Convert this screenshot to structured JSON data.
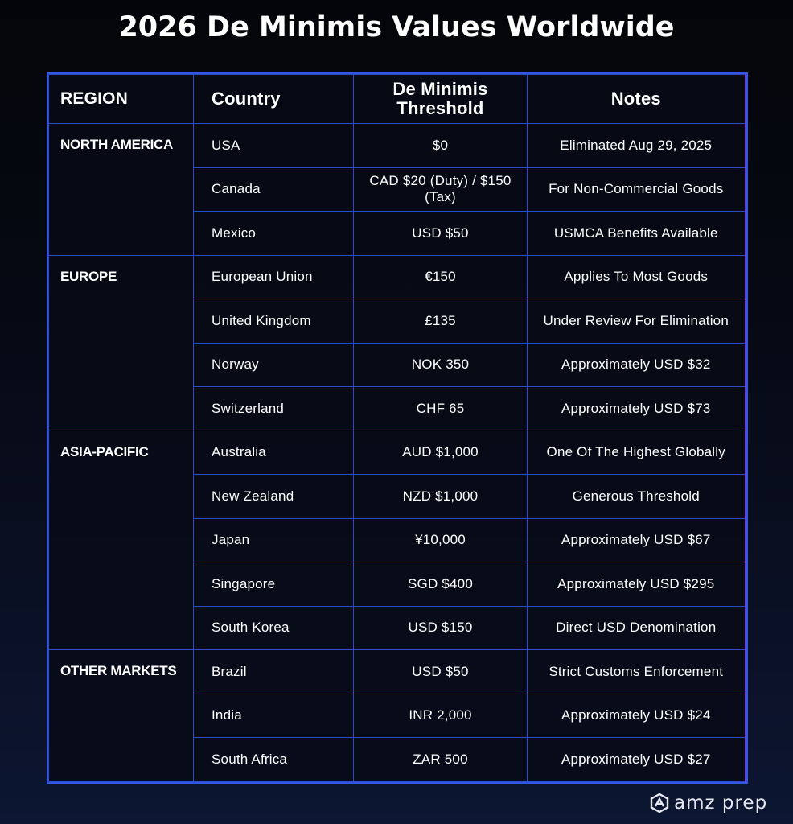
{
  "title": "2026 De Minimis Values Worldwide",
  "table": {
    "header": [
      "REGION",
      "Country",
      "De Minimis Threshold",
      "Notes"
    ],
    "groups": [
      {
        "region": "NORTH AMERICA",
        "rows": [
          [
            "USA",
            "$0",
            "Eliminated Aug 29, 2025"
          ],
          [
            "Canada",
            "CAD $20 (Duty) / $150 (Tax)",
            "For Non-Commercial Goods"
          ],
          [
            "Mexico",
            "USD $50",
            "USMCA Benefits Available"
          ]
        ]
      },
      {
        "region": "EUROPE",
        "rows": [
          [
            "European Union",
            "€150",
            "Applies To Most Goods"
          ],
          [
            "United Kingdom",
            "£135",
            "Under Review For Elimination"
          ],
          [
            "Norway",
            "NOK 350",
            "Approximately USD $32"
          ],
          [
            "Switzerland",
            "CHF 65",
            "Approximately USD $73"
          ]
        ]
      },
      {
        "region": "ASIA-PACIFIC",
        "rows": [
          [
            "Australia",
            "AUD $1,000",
            "One Of The Highest Globally"
          ],
          [
            "New Zealand",
            "NZD $1,000",
            "Generous Threshold"
          ],
          [
            "Japan",
            "¥10,000",
            "Approximately USD $67"
          ],
          [
            "Singapore",
            "SGD $400",
            "Approximately USD $295"
          ],
          [
            "South Korea",
            "USD $150",
            "Direct USD Denomination"
          ]
        ]
      },
      {
        "region": "OTHER MARKETS",
        "rows": [
          [
            "Brazil",
            "USD $50",
            "Strict Customs Enforcement"
          ],
          [
            "India",
            "INR 2,000",
            "Approximately USD $24"
          ],
          [
            "South Africa",
            "ZAR 500",
            "Approximately USD $27"
          ]
        ]
      }
    ]
  },
  "logo": "amz prep"
}
